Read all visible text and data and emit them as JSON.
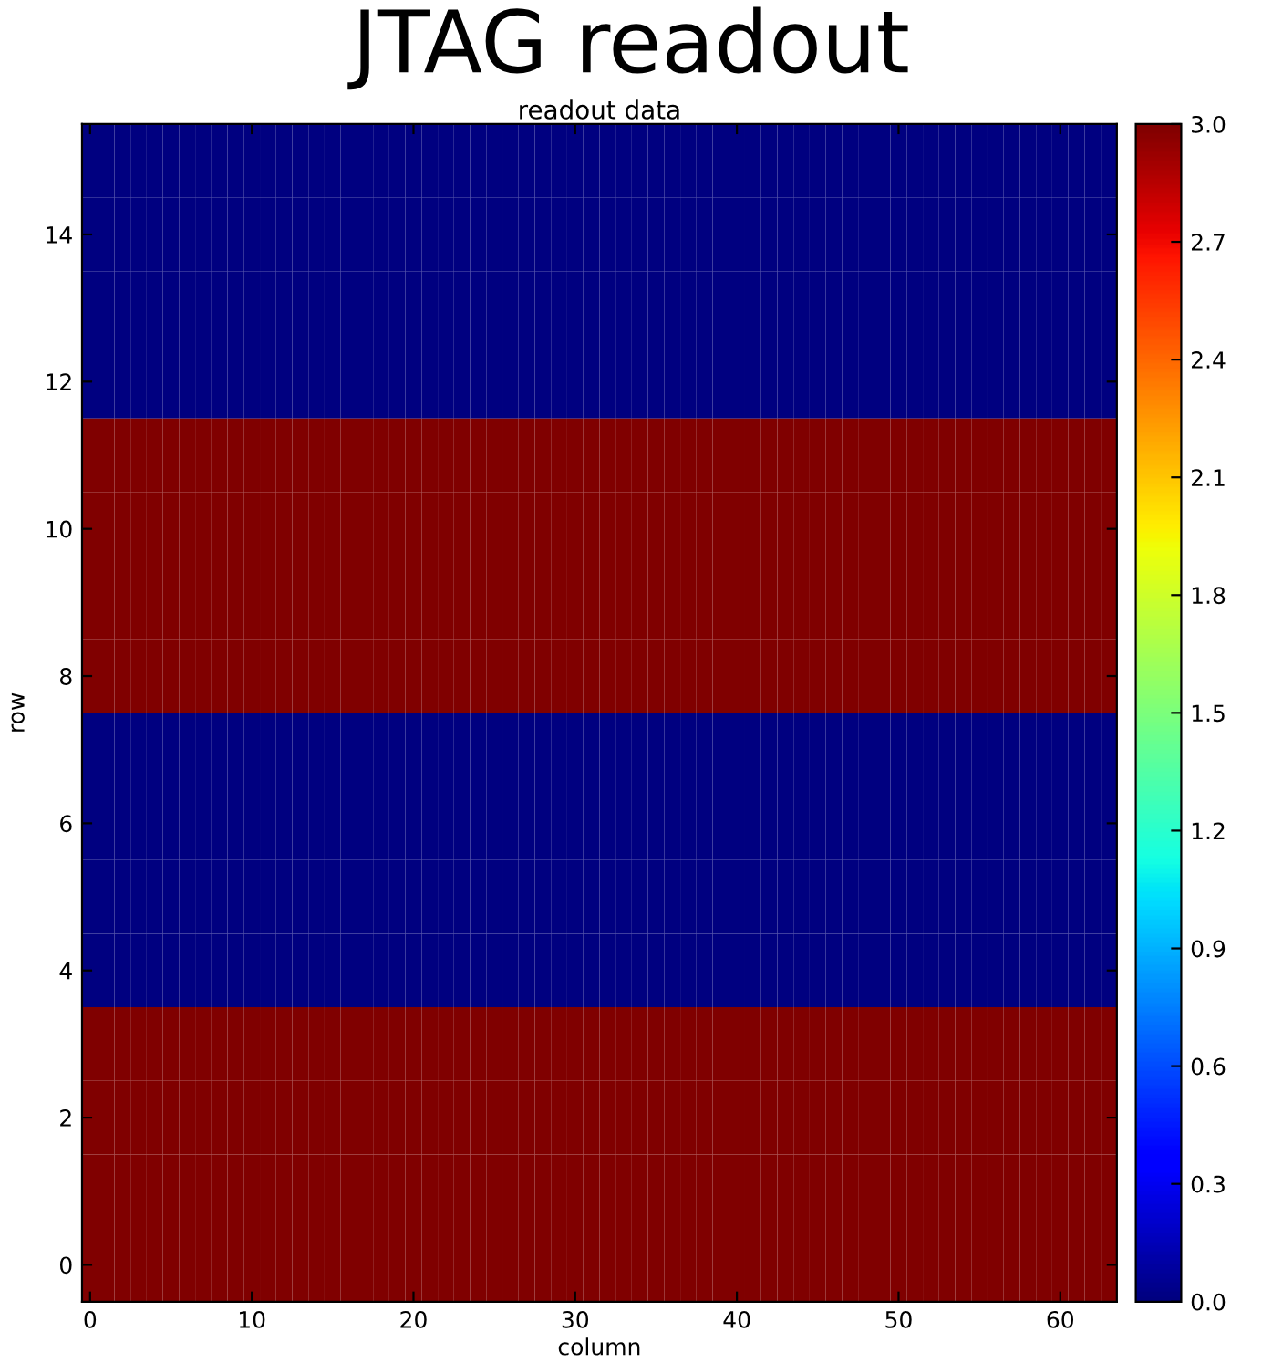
{
  "chart_data": {
    "type": "heatmap",
    "title": "JTAG readout",
    "subtitle": "readout data",
    "xlabel": "column",
    "ylabel": "row",
    "xlim": [
      -0.5,
      63.5
    ],
    "ylim": [
      -0.5,
      15.5
    ],
    "xticks": [
      0,
      10,
      20,
      30,
      40,
      50,
      60
    ],
    "yticks": [
      0,
      2,
      4,
      6,
      8,
      10,
      12,
      14
    ],
    "clim": [
      0,
      3
    ],
    "cticks": [
      {
        "value": 0,
        "label": "0.0"
      },
      {
        "value": 0.3,
        "label": "0.3"
      },
      {
        "value": 0.6,
        "label": "0.6"
      },
      {
        "value": 0.9,
        "label": "0.9"
      },
      {
        "value": 1.2,
        "label": "1.2"
      },
      {
        "value": 1.5,
        "label": "1.5"
      },
      {
        "value": 1.8,
        "label": "1.8"
      },
      {
        "value": 2.1,
        "label": "2.1"
      },
      {
        "value": 2.4,
        "label": "2.4"
      },
      {
        "value": 2.7,
        "label": "2.7"
      },
      {
        "value": 3.0,
        "label": "3.0"
      }
    ],
    "grid": false,
    "cells": [
      [
        0,
        0,
        0,
        0,
        0,
        0,
        0,
        0,
        0,
        0,
        0,
        0,
        0,
        0,
        0,
        0,
        0,
        0,
        0,
        0,
        0,
        0,
        0,
        0,
        0,
        0,
        0,
        0,
        0,
        0,
        0,
        0,
        0,
        0,
        0,
        0,
        0,
        0,
        0,
        0,
        0,
        0,
        0,
        0,
        0,
        0,
        0,
        0,
        0,
        0,
        0,
        0,
        0,
        0,
        0,
        0,
        0,
        0,
        0,
        0,
        0,
        0,
        0,
        0
      ],
      [
        0,
        0,
        0,
        0,
        0,
        0,
        0,
        0,
        0,
        0,
        0,
        0,
        0,
        0,
        0,
        0,
        0,
        0,
        0,
        0,
        0,
        0,
        0,
        0,
        0,
        0,
        0,
        0,
        0,
        0,
        0,
        0,
        0,
        0,
        0,
        0,
        0,
        0,
        0,
        0,
        0,
        0,
        0,
        0,
        0,
        0,
        0,
        0,
        0,
        0,
        0,
        0,
        0,
        0,
        0,
        0,
        0,
        0,
        0,
        0,
        0,
        0,
        0,
        0
      ],
      [
        0,
        0,
        0,
        0,
        0,
        0,
        0,
        0,
        0,
        0,
        0,
        0,
        0,
        0,
        0,
        0,
        0,
        0,
        0,
        0,
        0,
        0,
        0,
        0,
        0,
        0,
        0,
        0,
        0,
        0,
        0,
        0,
        0,
        0,
        0,
        0,
        0,
        0,
        0,
        0,
        0,
        0,
        0,
        0,
        0,
        0,
        0,
        0,
        0,
        0,
        0,
        0,
        0,
        0,
        0,
        0,
        0,
        0,
        0,
        0,
        0,
        0,
        0,
        0
      ],
      [
        0,
        0,
        0,
        0,
        0,
        0,
        0,
        0,
        0,
        0,
        0,
        0,
        0,
        0,
        0,
        0,
        0,
        0,
        0,
        0,
        0,
        0,
        0,
        0,
        0,
        0,
        0,
        0,
        0,
        0,
        0,
        0,
        0,
        0,
        0,
        0,
        0,
        0,
        0,
        0,
        0,
        0,
        0,
        0,
        0,
        0,
        0,
        0,
        0,
        0,
        0,
        0,
        0,
        0,
        0,
        0,
        0,
        0,
        0,
        0,
        0,
        0,
        0,
        0
      ],
      [
        3,
        3,
        3,
        3,
        3,
        3,
        3,
        3,
        3,
        3,
        3,
        3,
        3,
        3,
        3,
        3,
        3,
        3,
        3,
        3,
        3,
        3,
        3,
        3,
        3,
        3,
        3,
        3,
        3,
        3,
        3,
        3,
        3,
        3,
        3,
        3,
        3,
        3,
        3,
        3,
        3,
        3,
        3,
        3,
        3,
        3,
        3,
        3,
        3,
        3,
        3,
        3,
        3,
        3,
        3,
        3,
        3,
        3,
        3,
        3,
        3,
        3,
        3,
        3
      ],
      [
        3,
        3,
        3,
        3,
        3,
        3,
        3,
        3,
        3,
        3,
        3,
        3,
        3,
        3,
        3,
        3,
        3,
        3,
        3,
        3,
        3,
        3,
        3,
        3,
        3,
        3,
        3,
        3,
        3,
        3,
        3,
        3,
        3,
        3,
        3,
        3,
        3,
        3,
        3,
        3,
        3,
        3,
        3,
        3,
        3,
        3,
        3,
        3,
        3,
        3,
        3,
        3,
        3,
        3,
        3,
        3,
        3,
        3,
        3,
        3,
        3,
        3,
        3,
        3
      ],
      [
        3,
        3,
        3,
        3,
        3,
        3,
        3,
        3,
        3,
        3,
        3,
        3,
        3,
        3,
        3,
        3,
        3,
        3,
        3,
        3,
        3,
        3,
        3,
        3,
        3,
        3,
        3,
        3,
        3,
        3,
        3,
        3,
        3,
        3,
        3,
        3,
        3,
        3,
        3,
        3,
        3,
        3,
        3,
        3,
        3,
        3,
        3,
        3,
        3,
        3,
        3,
        3,
        3,
        3,
        3,
        3,
        3,
        3,
        3,
        3,
        3,
        3,
        3,
        3
      ],
      [
        3,
        3,
        3,
        3,
        3,
        3,
        3,
        3,
        3,
        3,
        3,
        3,
        3,
        3,
        3,
        3,
        3,
        3,
        3,
        3,
        3,
        3,
        3,
        3,
        3,
        3,
        3,
        3,
        3,
        3,
        3,
        3,
        3,
        3,
        3,
        3,
        3,
        3,
        3,
        3,
        3,
        3,
        3,
        3,
        3,
        3,
        3,
        3,
        3,
        3,
        3,
        3,
        3,
        3,
        3,
        3,
        3,
        3,
        3,
        3,
        3,
        3,
        3,
        3
      ],
      [
        0,
        0,
        0,
        0,
        0,
        0,
        0,
        0,
        0,
        0,
        0,
        0,
        0,
        0,
        0,
        0,
        0,
        0,
        0,
        0,
        0,
        0,
        0,
        0,
        0,
        0,
        0,
        0,
        0,
        0,
        0,
        0,
        0,
        0,
        0,
        0,
        0,
        0,
        0,
        0,
        0,
        0,
        0,
        0,
        0,
        0,
        0,
        0,
        0,
        0,
        0,
        0,
        0,
        0,
        0,
        0,
        0,
        0,
        0,
        0,
        0,
        0,
        0,
        0
      ],
      [
        0,
        0,
        0,
        0,
        0,
        0,
        0,
        0,
        0,
        0,
        0,
        0,
        0,
        0,
        0,
        0,
        0,
        0,
        0,
        0,
        0,
        0,
        0,
        0,
        0,
        0,
        0,
        0,
        0,
        0,
        0,
        0,
        0,
        0,
        0,
        0,
        0,
        0,
        0,
        0,
        0,
        0,
        0,
        0,
        0,
        0,
        0,
        0,
        0,
        0,
        0,
        0,
        0,
        0,
        0,
        0,
        0,
        0,
        0,
        0,
        0,
        0,
        0,
        0
      ],
      [
        0,
        0,
        0,
        0,
        0,
        0,
        0,
        0,
        0,
        0,
        0,
        0,
        0,
        0,
        0,
        0,
        0,
        0,
        0,
        0,
        0,
        0,
        0,
        0,
        0,
        0,
        0,
        0,
        0,
        0,
        0,
        0,
        0,
        0,
        0,
        0,
        0,
        0,
        0,
        0,
        0,
        0,
        0,
        0,
        0,
        0,
        0,
        0,
        0,
        0,
        0,
        0,
        0,
        0,
        0,
        0,
        0,
        0,
        0,
        0,
        0,
        0,
        0,
        0
      ],
      [
        0,
        0,
        0,
        0,
        0,
        0,
        0,
        0,
        0,
        0,
        0,
        0,
        0,
        0,
        0,
        0,
        0,
        0,
        0,
        0,
        0,
        0,
        0,
        0,
        0,
        0,
        0,
        0,
        0,
        0,
        0,
        0,
        0,
        0,
        0,
        0,
        0,
        0,
        0,
        0,
        0,
        0,
        0,
        0,
        0,
        0,
        0,
        0,
        0,
        0,
        0,
        0,
        0,
        0,
        0,
        0,
        0,
        0,
        0,
        0,
        0,
        0,
        0,
        0
      ],
      [
        3,
        3,
        3,
        3,
        3,
        3,
        3,
        3,
        3,
        3,
        3,
        3,
        3,
        3,
        3,
        3,
        3,
        3,
        3,
        3,
        3,
        3,
        3,
        3,
        3,
        3,
        3,
        3,
        3,
        3,
        3,
        3,
        3,
        3,
        3,
        3,
        3,
        3,
        3,
        3,
        3,
        3,
        3,
        3,
        3,
        3,
        3,
        3,
        3,
        3,
        3,
        3,
        3,
        3,
        3,
        3,
        3,
        3,
        3,
        3,
        3,
        3,
        3,
        3
      ],
      [
        3,
        3,
        3,
        3,
        3,
        3,
        3,
        3,
        3,
        3,
        3,
        3,
        3,
        3,
        3,
        3,
        3,
        3,
        3,
        3,
        3,
        3,
        3,
        3,
        3,
        3,
        3,
        3,
        3,
        3,
        3,
        3,
        3,
        3,
        3,
        3,
        3,
        3,
        3,
        3,
        3,
        3,
        3,
        3,
        3,
        3,
        3,
        3,
        3,
        3,
        3,
        3,
        3,
        3,
        3,
        3,
        3,
        3,
        3,
        3,
        3,
        3,
        3,
        3
      ],
      [
        3,
        3,
        3,
        3,
        3,
        3,
        3,
        3,
        3,
        3,
        3,
        3,
        3,
        3,
        3,
        3,
        3,
        3,
        3,
        3,
        3,
        3,
        3,
        3,
        3,
        3,
        3,
        3,
        3,
        3,
        3,
        3,
        3,
        3,
        3,
        3,
        3,
        3,
        3,
        3,
        3,
        3,
        3,
        3,
        3,
        3,
        3,
        3,
        3,
        3,
        3,
        3,
        3,
        3,
        3,
        3,
        3,
        3,
        3,
        3,
        3,
        3,
        3,
        3
      ],
      [
        3,
        3,
        3,
        3,
        3,
        3,
        3,
        3,
        3,
        3,
        3,
        3,
        3,
        3,
        3,
        3,
        3,
        3,
        3,
        3,
        3,
        3,
        3,
        3,
        3,
        3,
        3,
        3,
        3,
        3,
        3,
        3,
        3,
        3,
        3,
        3,
        3,
        3,
        3,
        3,
        3,
        3,
        3,
        3,
        3,
        3,
        3,
        3,
        3,
        3,
        3,
        3,
        3,
        3,
        3,
        3,
        3,
        3,
        3,
        3,
        3,
        3,
        3,
        3
      ]
    ]
  }
}
